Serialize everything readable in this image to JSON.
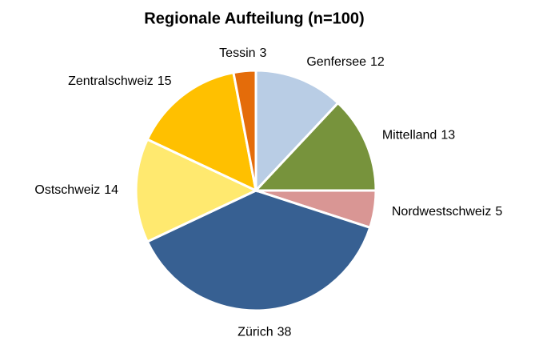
{
  "chart_data": {
    "type": "pie",
    "title": "Regionale Aufteilung (n=100)",
    "categories": [
      "Genfersee",
      "Mittelland",
      "Nordwestschweiz",
      "Zürich",
      "Ostschweiz",
      "Zentralschweiz",
      "Tessin"
    ],
    "values": [
      12,
      13,
      5,
      38,
      14,
      15,
      3
    ],
    "colors": [
      "#b9cde5",
      "#77933c",
      "#d99694",
      "#376092",
      "#ffe96f",
      "#ffc000",
      "#e46c0a"
    ]
  }
}
